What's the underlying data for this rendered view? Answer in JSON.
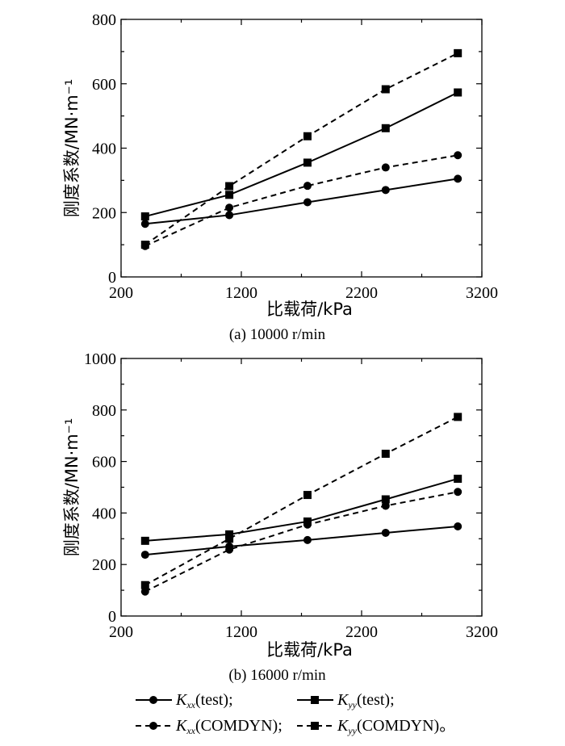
{
  "chart_data": [
    {
      "type": "line",
      "caption": "(a) 10000 r/min",
      "xlabel": "比载荷/kPa",
      "ylabel": "刚度系数/MN·m⁻¹",
      "xlim": [
        200,
        3200
      ],
      "ylim": [
        0,
        800
      ],
      "x_ticks": [
        200,
        1200,
        2200,
        3200
      ],
      "y_ticks": [
        0,
        200,
        400,
        600,
        800
      ],
      "x": [
        400,
        1100,
        1750,
        2400,
        3000
      ],
      "series": [
        {
          "name": "Kxx(test)",
          "marker": "circle",
          "line": "solid",
          "values": [
            165,
            192,
            232,
            270,
            305
          ]
        },
        {
          "name": "Kyy(test)",
          "marker": "square",
          "line": "solid",
          "values": [
            188,
            255,
            355,
            462,
            573
          ]
        },
        {
          "name": "Kxx(COMDYN)",
          "marker": "circle",
          "line": "dashed",
          "values": [
            96,
            215,
            283,
            340,
            378
          ]
        },
        {
          "name": "Kyy(COMDYN)",
          "marker": "square",
          "line": "dashed",
          "values": [
            100,
            282,
            437,
            583,
            695
          ]
        }
      ]
    },
    {
      "type": "line",
      "caption": "(b) 16000 r/min",
      "xlabel": "比载荷/kPa",
      "ylabel": "刚度系数/MN·m⁻¹",
      "xlim": [
        200,
        3200
      ],
      "ylim": [
        0,
        1000
      ],
      "x_ticks": [
        200,
        1200,
        2200,
        3200
      ],
      "y_ticks": [
        0,
        200,
        400,
        600,
        800,
        1000
      ],
      "x": [
        400,
        1100,
        1750,
        2400,
        3000
      ],
      "series": [
        {
          "name": "Kxx(test)",
          "marker": "circle",
          "line": "solid",
          "values": [
            238,
            270,
            295,
            323,
            348
          ]
        },
        {
          "name": "Kyy(test)",
          "marker": "square",
          "line": "solid",
          "values": [
            292,
            317,
            367,
            453,
            533
          ]
        },
        {
          "name": "Kxx(COMDYN)",
          "marker": "circle",
          "line": "dashed",
          "values": [
            95,
            258,
            355,
            428,
            482
          ]
        },
        {
          "name": "Kyy(COMDYN)",
          "marker": "square",
          "line": "dashed",
          "values": [
            120,
            300,
            470,
            630,
            773
          ]
        }
      ]
    }
  ],
  "legend": {
    "items": [
      {
        "k": "K",
        "sub": "xx",
        "text": "(test);",
        "marker": "circle",
        "line": "solid"
      },
      {
        "k": "K",
        "sub": "yy",
        "text": "(test);",
        "marker": "square",
        "line": "solid"
      },
      {
        "k": "K",
        "sub": "xx",
        "text": "(COMDYN);",
        "marker": "circle",
        "line": "dashed"
      },
      {
        "k": "K",
        "sub": "yy",
        "text": "(COMDYN)。",
        "marker": "square",
        "line": "dashed"
      }
    ]
  }
}
